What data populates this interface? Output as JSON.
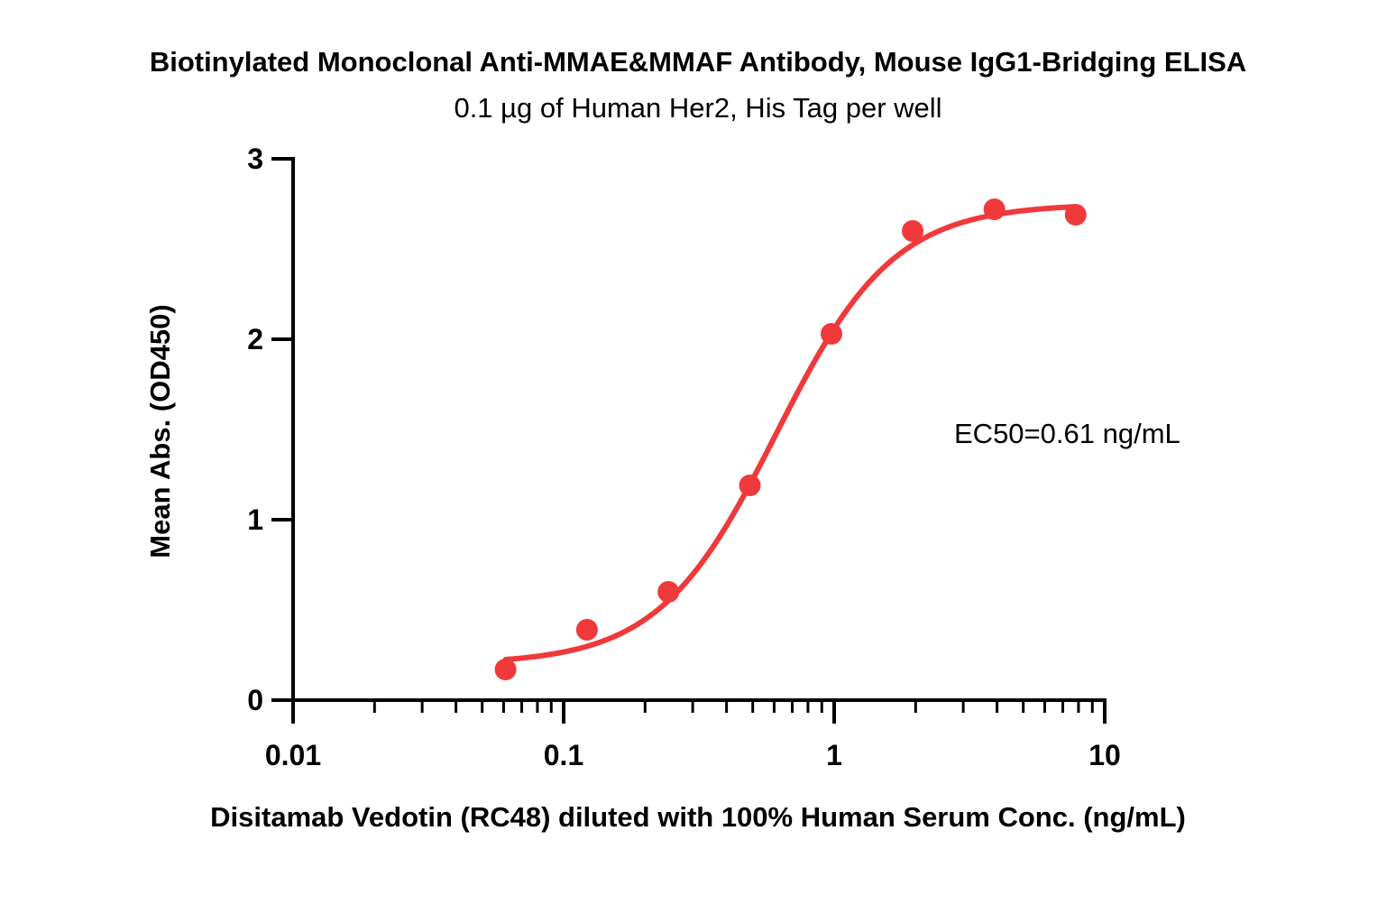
{
  "chart_data": {
    "type": "scatter",
    "title": "Biotinylated Monoclonal Anti-MMAE&MMAF Antibody, Mouse IgG1-Bridging ELISA",
    "subtitle": "0.1 µg of Human Her2, His Tag per well",
    "xlabel": "Disitamab Vedotin (RC48) diluted with 100% Human Serum Conc. (ng/mL)",
    "ylabel": "Mean Abs. (OD450)",
    "x_scale": "log",
    "xlim": [
      0.01,
      10
    ],
    "ylim": [
      0,
      3
    ],
    "x_ticks": [
      0.01,
      0.1,
      1,
      10
    ],
    "x_tick_labels": [
      "0.01",
      "0.1",
      "1",
      "10"
    ],
    "y_ticks": [
      0,
      1,
      2,
      3
    ],
    "y_tick_labels": [
      "0",
      "1",
      "2",
      "3"
    ],
    "grid": false,
    "annotation": "EC50=0.61 ng/mL",
    "color": "#f0393b",
    "series": [
      {
        "x": [
          0.061,
          0.122,
          0.244,
          0.488,
          0.977,
          1.95,
          3.91,
          7.81
        ],
        "y": [
          0.17,
          0.39,
          0.6,
          1.19,
          2.03,
          2.6,
          2.72,
          2.69
        ]
      }
    ],
    "fit_curve": {
      "model": "4PL",
      "bottom": 0.2,
      "top": 2.75,
      "ec50": 0.61,
      "hill_slope": 2.0
    }
  }
}
